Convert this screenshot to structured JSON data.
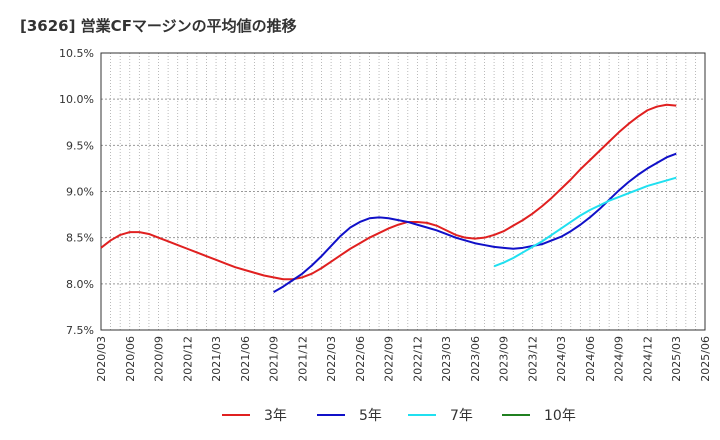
{
  "chart_data": {
    "type": "line",
    "title": "[3626]  営業CFマージンの平均値の推移",
    "y_unit": "%",
    "ylim": [
      7.5,
      10.5
    ],
    "y_ticks": [
      "7.5%",
      "8.0%",
      "8.5%",
      "9.0%",
      "9.5%",
      "10.0%",
      "10.5%"
    ],
    "x_ticks": [
      "2020/03",
      "2020/06",
      "2020/09",
      "2020/12",
      "2021/03",
      "2021/06",
      "2021/09",
      "2021/12",
      "2022/03",
      "2022/06",
      "2022/09",
      "2022/12",
      "2023/03",
      "2023/06",
      "2023/09",
      "2023/12",
      "2024/03",
      "2024/06",
      "2024/09",
      "2024/12",
      "2025/03",
      "2025/06"
    ],
    "grid": true,
    "legend_position": "bottom",
    "series": [
      {
        "name": "3年",
        "color": "#e02020",
        "x": [
          "2020/03",
          "2020/04",
          "2020/05",
          "2020/06",
          "2020/07",
          "2020/08",
          "2020/09",
          "2020/10",
          "2020/11",
          "2020/12",
          "2021/01",
          "2021/02",
          "2021/03",
          "2021/04",
          "2021/05",
          "2021/06",
          "2021/07",
          "2021/08",
          "2021/09",
          "2021/10",
          "2021/11",
          "2021/12",
          "2022/01",
          "2022/02",
          "2022/03",
          "2022/04",
          "2022/05",
          "2022/06",
          "2022/07",
          "2022/08",
          "2022/09",
          "2022/10",
          "2022/11",
          "2022/12",
          "2023/01",
          "2023/02",
          "2023/03",
          "2023/04",
          "2023/05",
          "2023/06",
          "2023/07",
          "2023/08",
          "2023/09",
          "2023/10",
          "2023/11",
          "2023/12",
          "2024/01",
          "2024/02",
          "2024/03",
          "2024/04",
          "2024/05",
          "2024/06",
          "2024/07",
          "2024/08",
          "2024/09",
          "2024/10",
          "2024/11",
          "2024/12",
          "2025/01",
          "2025/02",
          "2025/03"
        ],
        "values": [
          8.39,
          8.47,
          8.53,
          8.56,
          8.56,
          8.54,
          8.5,
          8.46,
          8.42,
          8.38,
          8.34,
          8.3,
          8.26,
          8.22,
          8.18,
          8.15,
          8.12,
          8.09,
          8.07,
          8.05,
          8.05,
          8.07,
          8.11,
          8.17,
          8.24,
          8.31,
          8.38,
          8.44,
          8.5,
          8.55,
          8.6,
          8.64,
          8.67,
          8.67,
          8.66,
          8.63,
          8.58,
          8.53,
          8.5,
          8.49,
          8.5,
          8.53,
          8.57,
          8.63,
          8.69,
          8.76,
          8.84,
          8.93,
          9.03,
          9.13,
          9.24,
          9.34,
          9.44,
          9.54,
          9.64,
          9.73,
          9.81,
          9.88,
          9.92,
          9.94,
          9.93
        ]
      },
      {
        "name": "5年",
        "color": "#1010c8",
        "x": [
          "2021/09",
          "2021/10",
          "2021/11",
          "2021/12",
          "2022/01",
          "2022/02",
          "2022/03",
          "2022/04",
          "2022/05",
          "2022/06",
          "2022/07",
          "2022/08",
          "2022/09",
          "2022/10",
          "2022/11",
          "2022/12",
          "2023/01",
          "2023/02",
          "2023/03",
          "2023/04",
          "2023/05",
          "2023/06",
          "2023/07",
          "2023/08",
          "2023/09",
          "2023/10",
          "2023/11",
          "2023/12",
          "2024/01",
          "2024/02",
          "2024/03",
          "2024/04",
          "2024/05",
          "2024/06",
          "2024/07",
          "2024/08",
          "2024/09",
          "2024/10",
          "2024/11",
          "2024/12",
          "2025/01",
          "2025/02",
          "2025/03"
        ],
        "values": [
          7.91,
          7.97,
          8.04,
          8.11,
          8.2,
          8.3,
          8.41,
          8.52,
          8.61,
          8.67,
          8.71,
          8.72,
          8.71,
          8.69,
          8.67,
          8.64,
          8.61,
          8.58,
          8.54,
          8.5,
          8.47,
          8.44,
          8.42,
          8.4,
          8.39,
          8.38,
          8.39,
          8.41,
          8.43,
          8.47,
          8.51,
          8.57,
          8.64,
          8.72,
          8.81,
          8.91,
          9.01,
          9.1,
          9.18,
          9.25,
          9.31,
          9.37,
          9.41
        ]
      },
      {
        "name": "7年",
        "color": "#20e0f0",
        "x": [
          "2023/08",
          "2023/09",
          "2023/10",
          "2023/11",
          "2023/12",
          "2024/01",
          "2024/02",
          "2024/03",
          "2024/04",
          "2024/05",
          "2024/06",
          "2024/07",
          "2024/08",
          "2024/09",
          "2024/10",
          "2024/11",
          "2024/12",
          "2025/01",
          "2025/02",
          "2025/03"
        ],
        "values": [
          8.19,
          8.23,
          8.28,
          8.34,
          8.4,
          8.46,
          8.53,
          8.6,
          8.67,
          8.74,
          8.8,
          8.85,
          8.9,
          8.94,
          8.98,
          9.02,
          9.06,
          9.09,
          9.12,
          9.15
        ]
      },
      {
        "name": "10年",
        "color": "#208020",
        "x": [],
        "values": []
      }
    ]
  }
}
